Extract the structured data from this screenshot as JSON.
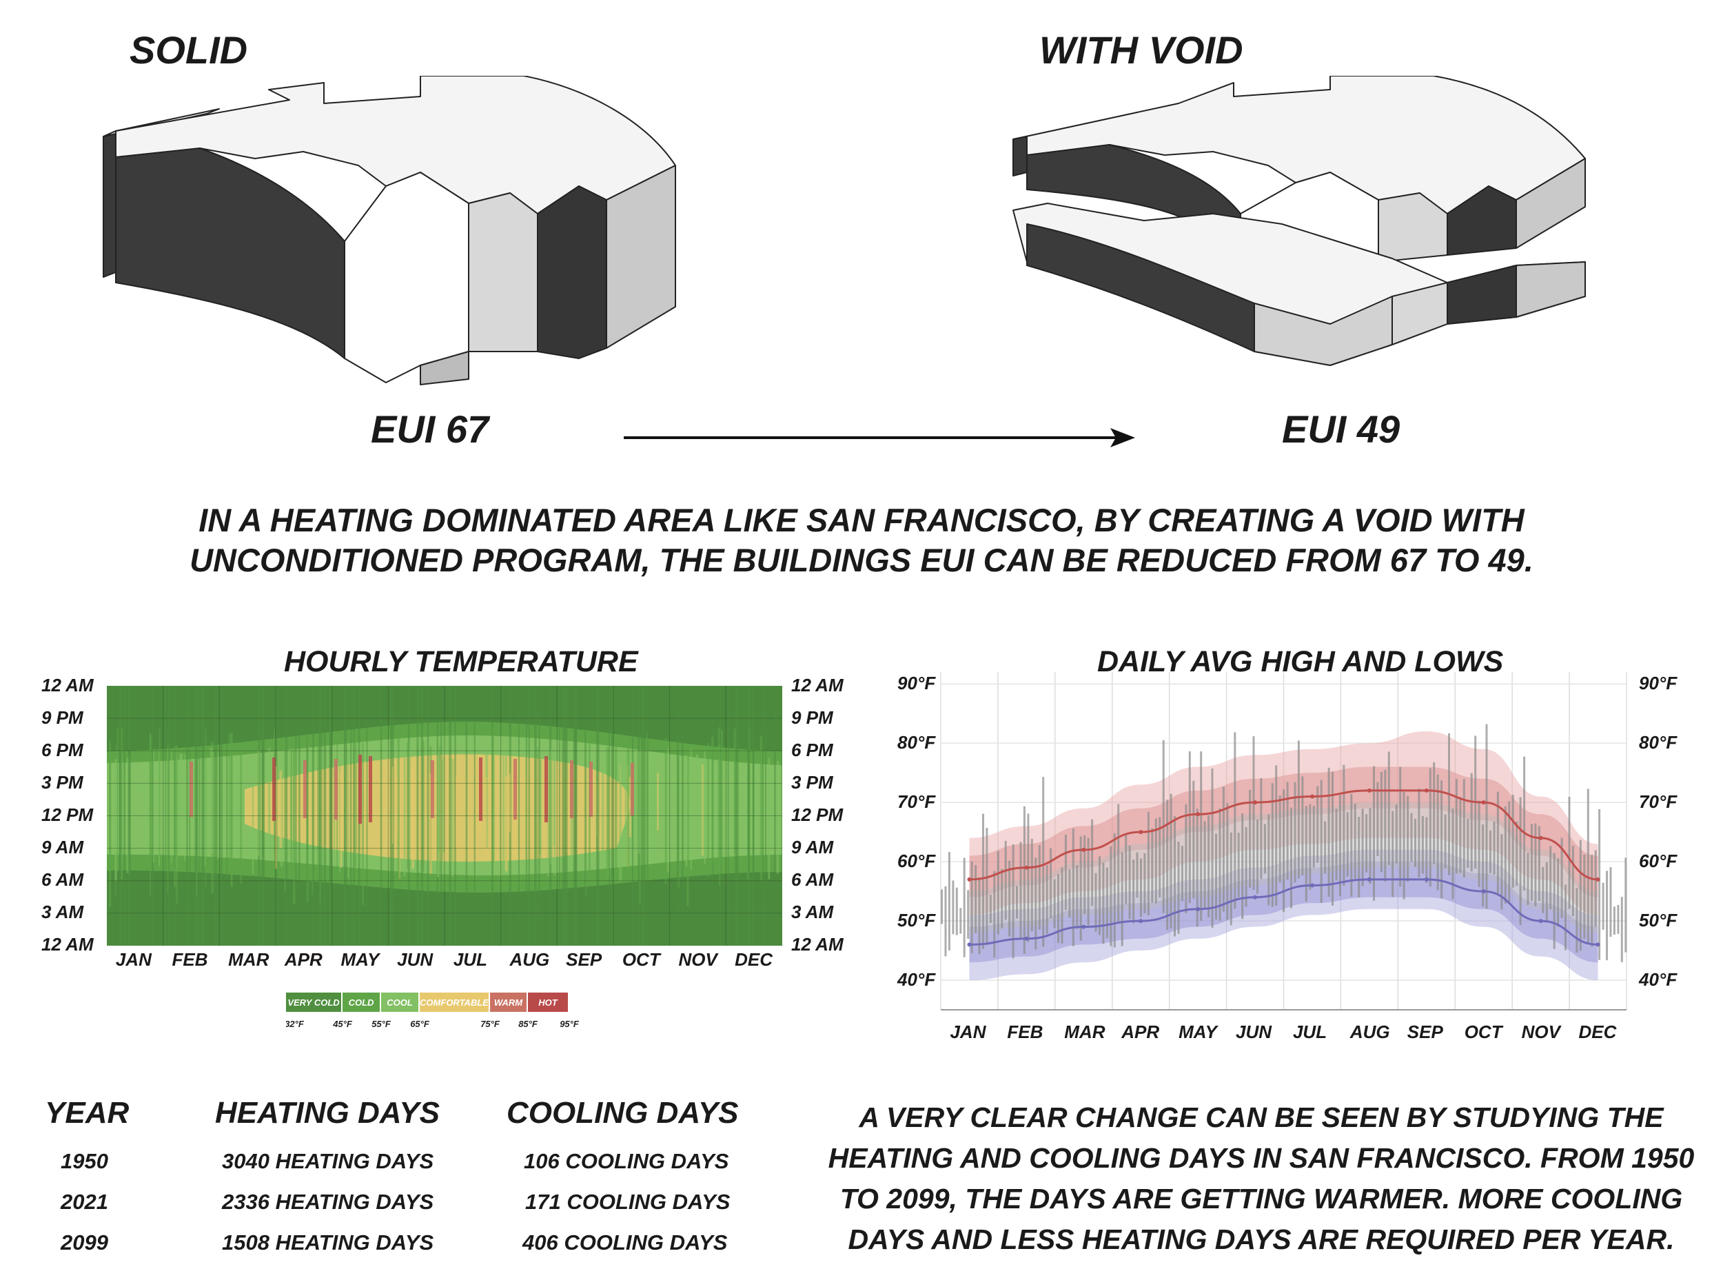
{
  "top": {
    "solid_label": "SOLID",
    "void_label": "WITH VOID",
    "eui_solid": "EUI 67",
    "eui_void": "EUI 49"
  },
  "caption": {
    "line1": "IN A HEATING DOMINATED AREA LIKE SAN FRANCISCO, BY CREATING A VOID WITH",
    "line2": "UNCONDITIONED PROGRAM, THE BUILDINGS EUI CAN BE REDUCED FROM 67 TO 49."
  },
  "hourly": {
    "title": "HOURLY TEMPERATURE",
    "hour_labels": [
      "12 AM",
      "9 PM",
      "6 PM",
      "3 PM",
      "12 PM",
      "9 AM",
      "6 AM",
      "3 AM",
      "12 AM"
    ],
    "month_labels": [
      "JAN",
      "FEB",
      "MAR",
      "APR",
      "MAY",
      "JUN",
      "JUL",
      "AUG",
      "SEP",
      "OCT",
      "NOV",
      "DEC"
    ],
    "legend": [
      {
        "label": "VERY COLD",
        "color": "#4f8f3f"
      },
      {
        "label": "COLD",
        "color": "#5fa548"
      },
      {
        "label": "COOL",
        "color": "#82c063"
      },
      {
        "label": "COMFORTABLE",
        "color": "#e7c86c"
      },
      {
        "label": "WARM",
        "color": "#c97264"
      },
      {
        "label": "HOT",
        "color": "#b94a4a"
      }
    ],
    "legend_ticks": [
      "32°F",
      "45°F",
      "55°F",
      "65°F",
      "75°F",
      "85°F",
      "95°F"
    ]
  },
  "chart_data": {
    "type": "area",
    "title": "DAILY AVG HIGH AND LOWS",
    "categories": [
      "JAN",
      "FEB",
      "MAR",
      "APR",
      "MAY",
      "JUN",
      "JUL",
      "AUG",
      "SEP",
      "OCT",
      "NOV",
      "DEC"
    ],
    "y_ticks": [
      "90°F",
      "80°F",
      "70°F",
      "60°F",
      "50°F",
      "40°F"
    ],
    "ylim": [
      35,
      92
    ],
    "series": [
      {
        "name": "Average high",
        "color": "#c0504d",
        "values": [
          57,
          59,
          62,
          65,
          68,
          70,
          71,
          72,
          72,
          70,
          64,
          57
        ]
      },
      {
        "name": "Average low",
        "color": "#6f6bb8",
        "values": [
          46,
          47,
          49,
          50,
          52,
          54,
          56,
          57,
          57,
          55,
          50,
          46
        ]
      }
    ],
    "band_p10_p90": {
      "high": [
        [
          51,
          64
        ],
        [
          53,
          66
        ],
        [
          55,
          69
        ],
        [
          57,
          73
        ],
        [
          60,
          76
        ],
        [
          62,
          78
        ],
        [
          63,
          79
        ],
        [
          64,
          80
        ],
        [
          64,
          82
        ],
        [
          62,
          79
        ],
        [
          57,
          71
        ],
        [
          51,
          63
        ]
      ],
      "low": [
        [
          40,
          51
        ],
        [
          41,
          52
        ],
        [
          43,
          54
        ],
        [
          45,
          55
        ],
        [
          47,
          57
        ],
        [
          49,
          59
        ],
        [
          51,
          61
        ],
        [
          52,
          62
        ],
        [
          52,
          62
        ],
        [
          49,
          60
        ],
        [
          44,
          55
        ],
        [
          40,
          51
        ]
      ]
    }
  },
  "table": {
    "headers": [
      "YEAR",
      "HEATING DAYS",
      "COOLING DAYS"
    ],
    "rows": [
      {
        "year": "1950",
        "heating": "3040 HEATING DAYS",
        "cooling": "106 COOLING DAYS"
      },
      {
        "year": "2021",
        "heating": "2336 HEATING DAYS",
        "cooling": "171 COOLING DAYS"
      },
      {
        "year": "2099",
        "heating": "1508 HEATING DAYS",
        "cooling": "406 COOLING DAYS"
      }
    ]
  },
  "note": {
    "lines": [
      "A VERY CLEAR CHANGE CAN BE SEEN BY STUDYING THE",
      "HEATING AND COOLING DAYS IN SAN FRANCISCO. FROM 1950",
      "TO 2099, THE DAYS ARE GETTING WARMER. MORE COOLING",
      "DAYS AND LESS HEATING DAYS ARE REQUIRED PER YEAR."
    ]
  }
}
